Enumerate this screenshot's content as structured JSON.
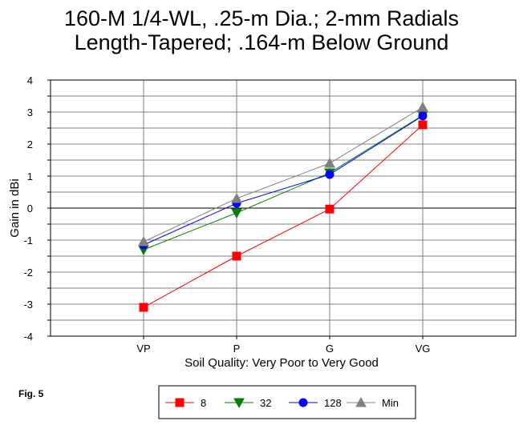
{
  "figure_label": "Fig. 5",
  "chart_data": {
    "type": "line",
    "title_lines": [
      "160-M 1/4-WL, .25-m Dia.; 2-mm Radials",
      "Length-Tapered; .164-m Below Ground"
    ],
    "xlabel": "Soil Quality:  Very Poor to Very Good",
    "ylabel": "Gain in dBi",
    "categories": [
      "VP",
      "P",
      "G",
      "VG"
    ],
    "ylim": [
      -4,
      4
    ],
    "yticks": [
      -4,
      -3,
      -2,
      -1,
      0,
      1,
      2,
      3,
      4
    ],
    "y_minor_step": 0.5,
    "grid": true,
    "legend_position": "bottom",
    "series": [
      {
        "name": "8",
        "color": "#ff0000",
        "marker": "square",
        "values": [
          -3.1,
          -1.5,
          -0.03,
          2.6
        ]
      },
      {
        "name": "32",
        "color": "#008000",
        "marker": "triangle-down",
        "values": [
          -1.3,
          -0.15,
          1.1,
          2.9
        ]
      },
      {
        "name": "128",
        "color": "#0000ff",
        "marker": "circle",
        "values": [
          -1.15,
          0.15,
          1.05,
          2.88
        ]
      },
      {
        "name": "Min",
        "color": "#808080",
        "marker": "triangle-up",
        "values": [
          -1.05,
          0.3,
          1.4,
          3.15
        ]
      }
    ]
  }
}
